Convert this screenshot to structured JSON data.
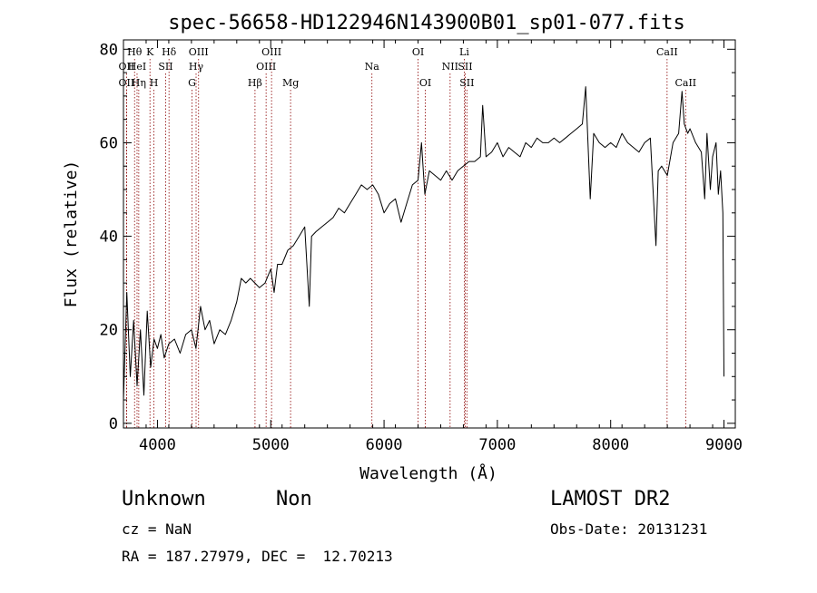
{
  "chart_data": {
    "type": "line",
    "title": "spec-56658-HD122946N143900B01_sp01-077.fits",
    "xlabel": "Wavelength (Å)",
    "ylabel": "Flux (relative)",
    "xlim": [
      3700,
      9100
    ],
    "ylim": [
      -1,
      82
    ],
    "x_ticks": [
      4000,
      5000,
      6000,
      7000,
      8000,
      9000
    ],
    "y_ticks": [
      0,
      20,
      40,
      60,
      80
    ],
    "grid": false,
    "legend": "none",
    "line_color": "#000000",
    "marker_color": "#8b0000",
    "series": [
      {
        "x": [
          3700,
          3730,
          3760,
          3790,
          3820,
          3850,
          3880,
          3910,
          3940,
          3970,
          4000,
          4030,
          4060,
          4100,
          4150,
          4200,
          4250,
          4300,
          4340,
          4380,
          4420,
          4460,
          4500,
          4550,
          4600,
          4650,
          4700,
          4740,
          4780,
          4820,
          4860,
          4900,
          4950,
          5000,
          5030,
          5060,
          5100,
          5150,
          5200,
          5250,
          5300,
          5340,
          5360,
          5400,
          5450,
          5500,
          5550,
          5600,
          5650,
          5700,
          5750,
          5800,
          5850,
          5900,
          5950,
          6000,
          6050,
          6100,
          6150,
          6200,
          6250,
          6300,
          6330,
          6360,
          6400,
          6450,
          6500,
          6550,
          6600,
          6650,
          6700,
          6750,
          6800,
          6850,
          6870,
          6900,
          6950,
          7000,
          7050,
          7100,
          7150,
          7200,
          7250,
          7300,
          7350,
          7400,
          7450,
          7500,
          7550,
          7600,
          7650,
          7700,
          7750,
          7780,
          7800,
          7820,
          7850,
          7900,
          7950,
          8000,
          8050,
          8100,
          8150,
          8200,
          8250,
          8300,
          8350,
          8400,
          8420,
          8450,
          8500,
          8550,
          8600,
          8630,
          8650,
          8680,
          8700,
          8750,
          8800,
          8830,
          8850,
          8880,
          8900,
          8930,
          8950,
          8970,
          8990,
          9000
        ],
        "y": [
          5,
          28,
          10,
          22,
          8,
          20,
          6,
          24,
          12,
          18,
          16,
          19,
          14,
          17,
          18,
          15,
          19,
          20,
          16,
          25,
          20,
          22,
          17,
          20,
          19,
          22,
          26,
          31,
          30,
          31,
          30,
          29,
          30,
          33,
          28,
          34,
          34,
          37,
          38,
          40,
          42,
          25,
          40,
          41,
          42,
          43,
          44,
          46,
          45,
          47,
          49,
          51,
          50,
          51,
          49,
          45,
          47,
          48,
          43,
          47,
          51,
          52,
          60,
          49,
          54,
          53,
          52,
          54,
          52,
          54,
          55,
          56,
          56,
          57,
          68,
          57,
          58,
          60,
          57,
          59,
          58,
          57,
          60,
          59,
          61,
          60,
          60,
          61,
          60,
          61,
          62,
          63,
          64,
          72,
          60,
          48,
          62,
          60,
          59,
          60,
          59,
          62,
          60,
          59,
          58,
          60,
          61,
          38,
          54,
          55,
          53,
          60,
          62,
          71,
          64,
          62,
          63,
          60,
          58,
          48,
          62,
          50,
          57,
          60,
          49,
          54,
          45,
          10
        ]
      }
    ],
    "lines": [
      {
        "label": "Hθ",
        "x": 3798,
        "row": 1
      },
      {
        "label": "OII",
        "x": 3727,
        "row": 2
      },
      {
        "label": "OII",
        "x": 3727,
        "row": 3
      },
      {
        "label": "HeI",
        "x": 3820,
        "row": 2
      },
      {
        "label": "Hη",
        "x": 3835,
        "row": 3
      },
      {
        "label": "K",
        "x": 3934,
        "row": 1
      },
      {
        "label": "SII",
        "x": 4072,
        "row": 2
      },
      {
        "label": "H",
        "x": 3969,
        "row": 3
      },
      {
        "label": "Hδ",
        "x": 4102,
        "row": 1
      },
      {
        "label": "OIII",
        "x": 4363,
        "row": 1
      },
      {
        "label": "Hγ",
        "x": 4341,
        "row": 2
      },
      {
        "label": "G",
        "x": 4305,
        "row": 3
      },
      {
        "label": "Hβ",
        "x": 4861,
        "row": 3
      },
      {
        "label": "OIII",
        "x": 5007,
        "row": 1
      },
      {
        "label": "OIII",
        "x": 4959,
        "row": 2
      },
      {
        "label": "Mg",
        "x": 5175,
        "row": 3
      },
      {
        "label": "Na",
        "x": 5893,
        "row": 2
      },
      {
        "label": "OI",
        "x": 6300,
        "row": 1
      },
      {
        "label": "OI",
        "x": 6364,
        "row": 3
      },
      {
        "label": "Li",
        "x": 6708,
        "row": 1
      },
      {
        "label": "NII",
        "x": 6583,
        "row": 2
      },
      {
        "label": "SII",
        "x": 6716,
        "row": 2
      },
      {
        "label": "SII",
        "x": 6731,
        "row": 3
      },
      {
        "label": "CaII",
        "x": 8498,
        "row": 1
      },
      {
        "label": "CaII",
        "x": 8662,
        "row": 3
      }
    ]
  },
  "info": {
    "class": "Unknown",
    "subclass": "Non",
    "cz": "cz = NaN",
    "radec": "RA = 187.27979, DEC =  12.70213",
    "survey": "LAMOST DR2",
    "obsdate": "Obs-Date: 20131231"
  }
}
